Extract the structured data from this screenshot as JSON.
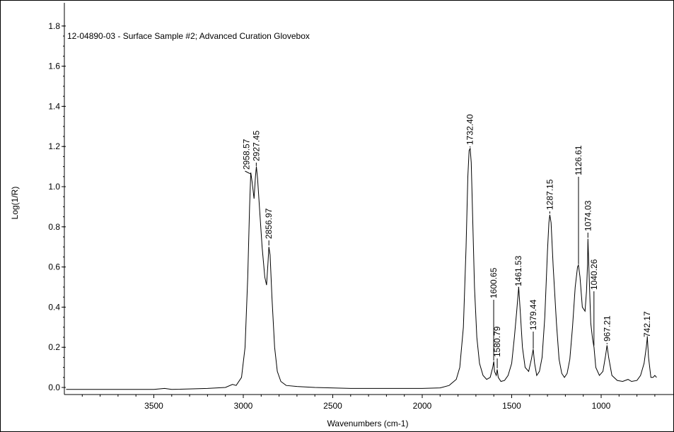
{
  "chart_data": {
    "type": "line",
    "title": "12-04890-03 - Surface Sample #2; Advanced Curation Glovebox",
    "xlabel": "Wavenumbers (cm-1)",
    "ylabel": "Log(1/R)",
    "xlim": [
      3990,
      690
    ],
    "ylim": [
      -0.02,
      1.85
    ],
    "x_reversed": true,
    "x_ticks": [
      {
        "value": 3500,
        "label": "3500"
      },
      {
        "value": 3000,
        "label": "3000"
      },
      {
        "value": 2500,
        "label": "2500"
      },
      {
        "value": 2000,
        "label": "2000"
      },
      {
        "value": 1500,
        "label": "1500"
      },
      {
        "value": 1000,
        "label": "1000"
      }
    ],
    "y_ticks": [
      {
        "value": 0.0,
        "label": "0.0"
      },
      {
        "value": 0.2,
        "label": "0.2"
      },
      {
        "value": 0.4,
        "label": "0.4"
      },
      {
        "value": 0.6,
        "label": "0.6"
      },
      {
        "value": 0.8,
        "label": "0.8"
      },
      {
        "value": 1.0,
        "label": "1.0"
      },
      {
        "value": 1.2,
        "label": "1.2"
      },
      {
        "value": 1.4,
        "label": "1.4"
      },
      {
        "value": 1.6,
        "label": "1.6"
      },
      {
        "value": 1.8,
        "label": "1.8"
      }
    ],
    "grid": false,
    "series": [
      {
        "color": "#000000",
        "points": [
          [
            3990,
            -0.01
          ],
          [
            3800,
            -0.01
          ],
          [
            3600,
            -0.01
          ],
          [
            3500,
            -0.01
          ],
          [
            3440,
            -0.005
          ],
          [
            3400,
            -0.01
          ],
          [
            3200,
            -0.005
          ],
          [
            3100,
            0.0
          ],
          [
            3060,
            0.015
          ],
          [
            3040,
            0.01
          ],
          [
            3010,
            0.05
          ],
          [
            2990,
            0.2
          ],
          [
            2975,
            0.55
          ],
          [
            2965,
            0.9
          ],
          [
            2958,
            1.07
          ],
          [
            2950,
            1.02
          ],
          [
            2940,
            0.94
          ],
          [
            2932,
            1.05
          ],
          [
            2927,
            1.1
          ],
          [
            2920,
            1.04
          ],
          [
            2910,
            0.9
          ],
          [
            2895,
            0.7
          ],
          [
            2880,
            0.55
          ],
          [
            2870,
            0.51
          ],
          [
            2862,
            0.62
          ],
          [
            2857,
            0.7
          ],
          [
            2850,
            0.66
          ],
          [
            2840,
            0.45
          ],
          [
            2825,
            0.2
          ],
          [
            2810,
            0.08
          ],
          [
            2790,
            0.03
          ],
          [
            2760,
            0.01
          ],
          [
            2700,
            0.005
          ],
          [
            2600,
            0.0
          ],
          [
            2400,
            -0.005
          ],
          [
            2200,
            -0.005
          ],
          [
            2000,
            -0.005
          ],
          [
            1900,
            -0.002
          ],
          [
            1850,
            0.01
          ],
          [
            1810,
            0.04
          ],
          [
            1790,
            0.1
          ],
          [
            1770,
            0.3
          ],
          [
            1755,
            0.7
          ],
          [
            1745,
            1.05
          ],
          [
            1738,
            1.18
          ],
          [
            1732,
            1.19
          ],
          [
            1726,
            1.12
          ],
          [
            1718,
            0.85
          ],
          [
            1708,
            0.5
          ],
          [
            1695,
            0.25
          ],
          [
            1680,
            0.12
          ],
          [
            1660,
            0.06
          ],
          [
            1640,
            0.04
          ],
          [
            1620,
            0.05
          ],
          [
            1606,
            0.1
          ],
          [
            1600,
            0.13
          ],
          [
            1596,
            0.08
          ],
          [
            1586,
            0.06
          ],
          [
            1581,
            0.09
          ],
          [
            1575,
            0.05
          ],
          [
            1560,
            0.03
          ],
          [
            1540,
            0.035
          ],
          [
            1520,
            0.06
          ],
          [
            1500,
            0.12
          ],
          [
            1485,
            0.25
          ],
          [
            1472,
            0.38
          ],
          [
            1461,
            0.5
          ],
          [
            1452,
            0.38
          ],
          [
            1440,
            0.2
          ],
          [
            1425,
            0.1
          ],
          [
            1405,
            0.08
          ],
          [
            1390,
            0.14
          ],
          [
            1380,
            0.19
          ],
          [
            1372,
            0.12
          ],
          [
            1360,
            0.06
          ],
          [
            1345,
            0.08
          ],
          [
            1330,
            0.15
          ],
          [
            1315,
            0.35
          ],
          [
            1300,
            0.68
          ],
          [
            1292,
            0.82
          ],
          [
            1287,
            0.86
          ],
          [
            1280,
            0.82
          ],
          [
            1268,
            0.6
          ],
          [
            1250,
            0.32
          ],
          [
            1235,
            0.14
          ],
          [
            1220,
            0.07
          ],
          [
            1205,
            0.05
          ],
          [
            1190,
            0.07
          ],
          [
            1175,
            0.14
          ],
          [
            1160,
            0.3
          ],
          [
            1145,
            0.5
          ],
          [
            1132,
            0.6
          ],
          [
            1127,
            0.61
          ],
          [
            1118,
            0.55
          ],
          [
            1105,
            0.4
          ],
          [
            1090,
            0.38
          ],
          [
            1082,
            0.48
          ],
          [
            1076,
            0.62
          ],
          [
            1074,
            0.74
          ],
          [
            1068,
            0.58
          ],
          [
            1058,
            0.32
          ],
          [
            1048,
            0.24
          ],
          [
            1040,
            0.2
          ],
          [
            1030,
            0.1
          ],
          [
            1010,
            0.06
          ],
          [
            990,
            0.08
          ],
          [
            975,
            0.16
          ],
          [
            967,
            0.21
          ],
          [
            958,
            0.15
          ],
          [
            940,
            0.06
          ],
          [
            910,
            0.035
          ],
          [
            880,
            0.03
          ],
          [
            850,
            0.04
          ],
          [
            830,
            0.03
          ],
          [
            800,
            0.035
          ],
          [
            780,
            0.06
          ],
          [
            760,
            0.12
          ],
          [
            748,
            0.2
          ],
          [
            742,
            0.25
          ],
          [
            735,
            0.15
          ],
          [
            722,
            0.05
          ],
          [
            710,
            0.05
          ],
          [
            700,
            0.06
          ],
          [
            690,
            0.05
          ]
        ]
      }
    ],
    "annotations": [
      {
        "x": 2958.57,
        "label": "2958.57"
      },
      {
        "x": 2927.45,
        "label": "2927.45"
      },
      {
        "x": 2856.97,
        "label": "2856.97"
      },
      {
        "x": 1732.4,
        "label": "1732.40"
      },
      {
        "x": 1600.65,
        "label": "1600.65"
      },
      {
        "x": 1580.79,
        "label": "1580.79"
      },
      {
        "x": 1461.53,
        "label": "1461.53"
      },
      {
        "x": 1379.44,
        "label": "1379.44"
      },
      {
        "x": 1287.15,
        "label": "1287.15"
      },
      {
        "x": 1126.61,
        "label": "1126.61"
      },
      {
        "x": 1074.03,
        "label": "1074.03"
      },
      {
        "x": 1040.26,
        "label": "1040.26"
      },
      {
        "x": 967.21,
        "label": "967.21"
      },
      {
        "x": 742.17,
        "label": "742.17"
      }
    ]
  }
}
